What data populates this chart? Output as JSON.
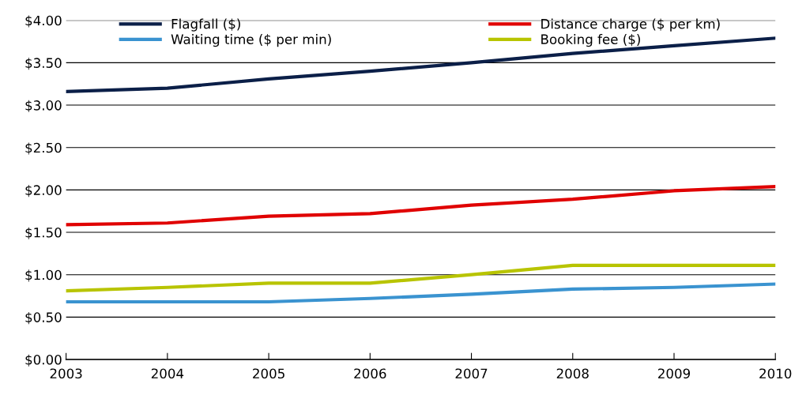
{
  "chart_data": {
    "type": "line",
    "x": [
      2003,
      2004,
      2005,
      2006,
      2007,
      2008,
      2009,
      2010
    ],
    "series": [
      {
        "name": "Flagfall ($)",
        "color": "#0b1f48",
        "values": [
          3.16,
          3.2,
          3.31,
          3.4,
          3.5,
          3.61,
          3.7,
          3.79
        ]
      },
      {
        "name": "Distance charge ($ per km)",
        "color": "#e00000",
        "values": [
          1.59,
          1.61,
          1.69,
          1.72,
          1.82,
          1.89,
          1.99,
          2.04
        ]
      },
      {
        "name": "Waiting time ($ per min)",
        "color": "#3a93d0",
        "values": [
          0.68,
          0.68,
          0.68,
          0.72,
          0.77,
          0.83,
          0.85,
          0.89
        ]
      },
      {
        "name": "Booking fee ($)",
        "color": "#b8c400",
        "values": [
          0.81,
          0.85,
          0.9,
          0.9,
          1.0,
          1.11,
          1.11,
          1.11
        ]
      }
    ],
    "xlim": [
      2003,
      2010
    ],
    "xticks": [
      2003,
      2004,
      2005,
      2006,
      2007,
      2008,
      2009,
      2010
    ],
    "ylim": [
      0,
      4
    ],
    "yticks": [
      {
        "value": 0,
        "label": "$0.00"
      },
      {
        "value": 0.5,
        "label": "$0.50"
      },
      {
        "value": 1,
        "label": "$1.00"
      },
      {
        "value": 1.5,
        "label": "$1.50"
      },
      {
        "value": 2,
        "label": "$2.00"
      },
      {
        "value": 2.5,
        "label": "$2.50"
      },
      {
        "value": 3,
        "label": "$3.00"
      },
      {
        "value": 3.5,
        "label": "$3.50"
      },
      {
        "value": 4,
        "label": "$4.00"
      }
    ],
    "grid": "y",
    "legend": "top",
    "marker": "none",
    "line_style": "solid"
  }
}
